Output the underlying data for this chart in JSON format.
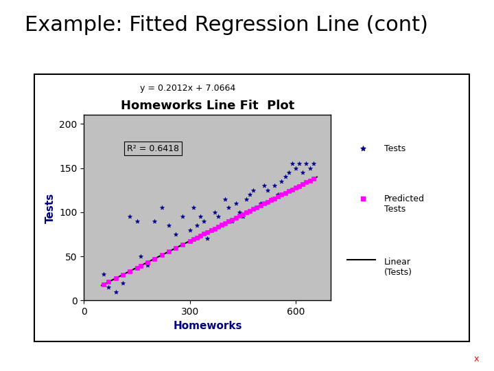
{
  "title": "Example: Fitted Regression Line (cont)",
  "plot_title": "Homeworks Line Fit  Plot",
  "xlabel": "Homeworks",
  "ylabel": "Tests",
  "equation": "y = 0.2012x + 7.0664",
  "r_squared": "R² = 0.6418",
  "slope": 0.2012,
  "intercept": 7.0664,
  "x_data": [
    55,
    70,
    90,
    110,
    130,
    150,
    160,
    180,
    200,
    220,
    240,
    260,
    280,
    300,
    310,
    320,
    330,
    340,
    350,
    360,
    370,
    380,
    390,
    400,
    410,
    420,
    430,
    440,
    450,
    460,
    470,
    480,
    490,
    500,
    510,
    520,
    530,
    540,
    550,
    560,
    570,
    580,
    590,
    600,
    610,
    620,
    630,
    640,
    650
  ],
  "y_data": [
    30,
    15,
    10,
    20,
    95,
    90,
    50,
    40,
    90,
    105,
    85,
    75,
    95,
    80,
    105,
    85,
    95,
    90,
    70,
    80,
    100,
    95,
    85,
    115,
    105,
    90,
    110,
    100,
    95,
    115,
    120,
    125,
    105,
    110,
    130,
    125,
    115,
    130,
    120,
    135,
    140,
    145,
    155,
    150,
    155,
    145,
    155,
    150,
    155
  ],
  "xlim": [
    0,
    700
  ],
  "ylim": [
    0,
    210
  ],
  "xticks": [
    0,
    300,
    600
  ],
  "yticks": [
    0,
    50,
    100,
    150,
    200
  ],
  "scatter_color": "#00008B",
  "predicted_color": "#FF00FF",
  "line_color": "#000000",
  "plot_bg_color": "#C0C0C0",
  "outer_bg_color": "#FFFFFF",
  "legend_tests_label": "Tests",
  "legend_predicted_label": "Predicted\nTests",
  "legend_linear_label": "Linear\n(Tests)",
  "watermark_x": "x",
  "watermark_color": "#FF0000",
  "title_fontsize": 22,
  "plot_title_fontsize": 13,
  "axis_label_fontsize": 11
}
